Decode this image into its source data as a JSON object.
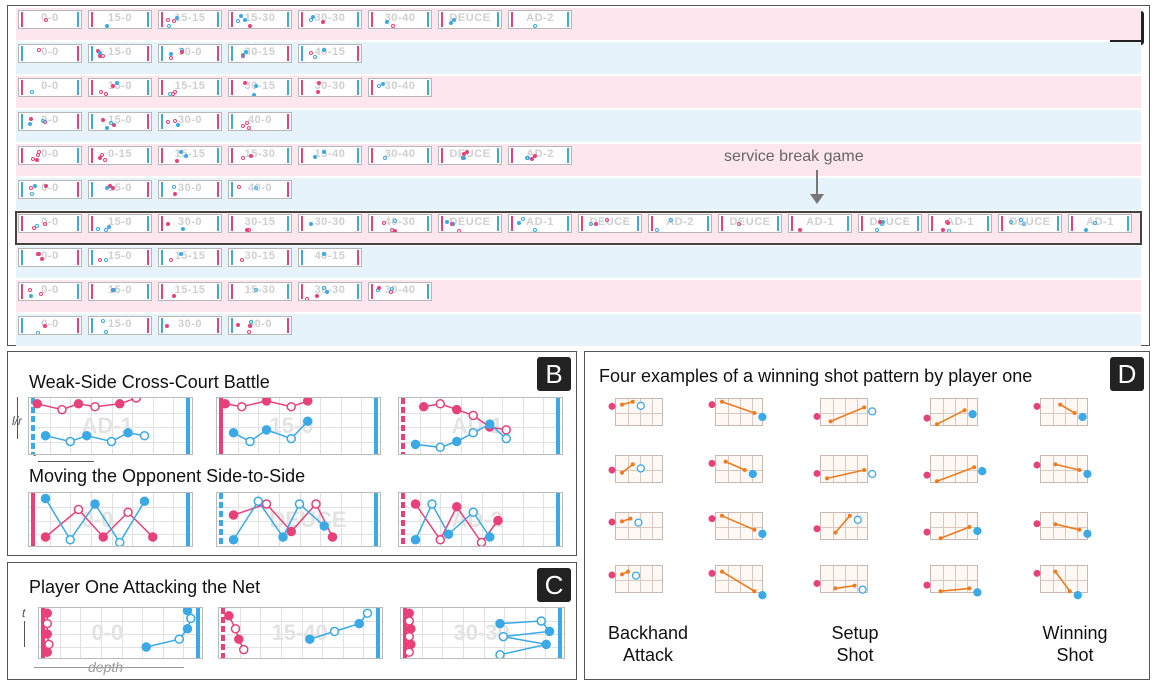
{
  "panel_a": {
    "badge": "A",
    "annotation": "service break game",
    "rows": [
      {
        "tone": "pink",
        "tiles": [
          "0-0",
          "15-0",
          "15-15",
          "15-30",
          "30-30",
          "30-40",
          "DEUCE",
          "AD-2"
        ]
      },
      {
        "tone": "blue",
        "tiles": [
          "0-0",
          "15-0",
          "30-0",
          "30-15",
          "40-15"
        ]
      },
      {
        "tone": "pink",
        "tiles": [
          "0-0",
          "15-0",
          "15-15",
          "30-15",
          "30-30",
          "30-40"
        ]
      },
      {
        "tone": "blue",
        "tiles": [
          "0-0",
          "15-0",
          "30-0",
          "40-0"
        ]
      },
      {
        "tone": "pink",
        "tiles": [
          "0-0",
          "0-15",
          "15-15",
          "15-30",
          "15-40",
          "30-40",
          "DEUCE",
          "AD-2"
        ]
      },
      {
        "tone": "blue",
        "tiles": [
          "0-0",
          "15-0",
          "30-0",
          "40-0"
        ]
      },
      {
        "tone": "pink",
        "tiles": [
          "0-0",
          "15-0",
          "30-0",
          "30-15",
          "30-30",
          "40-30",
          "DEUCE",
          "AD-1",
          "DEUCE",
          "AD-2",
          "DEUCE",
          "AD-1",
          "DEUCE",
          "AD-1",
          "DEUCE",
          "AD-1"
        ]
      },
      {
        "tone": "blue",
        "tiles": [
          "0-0",
          "15-0",
          "15-15",
          "30-15",
          "40-15"
        ]
      },
      {
        "tone": "pink",
        "tiles": [
          "0-0",
          "15-0",
          "15-15",
          "15-30",
          "30-30",
          "30-40"
        ]
      },
      {
        "tone": "blue",
        "tiles": [
          "0-0",
          "15-0",
          "30-0",
          "40-0"
        ]
      }
    ]
  },
  "panel_b": {
    "badge": "B",
    "title1": "Weak-Side Cross-Court Battle",
    "title2": "Moving the Opponent Side-to-Side",
    "axis_y": "l/r",
    "axis_x": "t",
    "row1_scores": [
      "AD-1",
      "15-0",
      "AD-1"
    ],
    "row2_scores": [
      "0-0",
      "DEUCE",
      "AD-2"
    ]
  },
  "panel_c": {
    "badge": "C",
    "title": "Player One Attacking the Net",
    "axis_y": "t",
    "axis_x": "depth",
    "scores": [
      "0-0",
      "15-40",
      "30-30"
    ]
  },
  "panel_d": {
    "badge": "D",
    "title": "Four examples of a winning shot pattern by player one",
    "labels": [
      "Backhand\nAttack",
      "Setup\nShot",
      "Winning\nShot"
    ]
  },
  "colors": {
    "pink": "#e8417a",
    "blue": "#3aa9e6",
    "orange": "#f07b1e",
    "dark": "#222222"
  }
}
